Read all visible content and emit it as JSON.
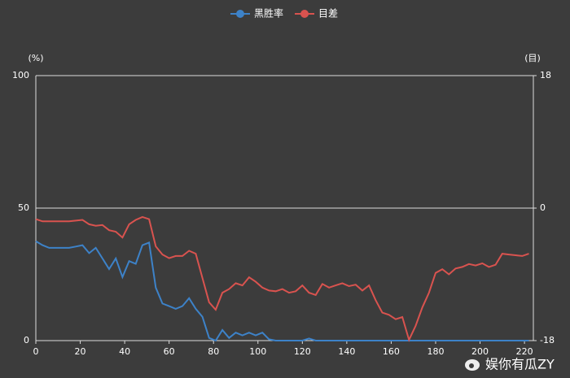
{
  "chart_data": {
    "type": "line",
    "x": [
      0,
      3,
      6,
      9,
      12,
      15,
      18,
      21,
      24,
      27,
      30,
      33,
      36,
      39,
      42,
      45,
      48,
      51,
      54,
      57,
      60,
      63,
      66,
      69,
      72,
      75,
      78,
      81,
      84,
      87,
      90,
      93,
      96,
      99,
      102,
      105,
      108,
      111,
      114,
      117,
      120,
      123,
      126,
      129,
      132,
      135,
      138,
      141,
      144,
      147,
      150,
      153,
      156,
      159,
      162,
      165,
      168,
      171,
      174,
      177,
      180,
      183,
      186,
      189,
      192,
      195,
      198,
      201,
      204,
      207,
      210,
      213,
      216,
      219,
      222
    ],
    "series": [
      {
        "name": "黑胜率",
        "color": "#3d82c8",
        "axis": "y",
        "values": [
          37.5,
          36,
          35,
          35,
          35,
          35,
          35.5,
          36,
          33,
          35,
          31,
          27,
          31,
          24,
          30,
          29,
          36,
          37,
          20,
          14,
          13,
          12,
          13,
          16,
          12,
          9,
          1,
          0,
          4,
          1,
          3,
          2,
          3,
          2,
          3,
          0.5,
          0,
          0,
          0,
          0,
          0,
          0.8,
          0,
          0,
          0,
          0,
          0,
          0,
          0,
          0,
          0,
          0,
          0,
          0,
          0,
          0,
          0,
          0,
          0,
          0,
          0,
          0,
          0,
          0,
          0,
          0,
          0,
          0,
          0,
          0,
          0,
          0,
          0,
          0,
          0
        ]
      },
      {
        "name": "目差",
        "color": "#d9534f",
        "axis": "y2",
        "values": [
          -1.5,
          -1.8,
          -1.8,
          -1.8,
          -1.8,
          -1.8,
          -1.7,
          -1.6,
          -2.2,
          -2.4,
          -2.3,
          -3,
          -3.2,
          -4,
          -2.2,
          -1.6,
          -1.2,
          -1.5,
          -5.2,
          -6.3,
          -6.8,
          -6.5,
          -6.5,
          -5.8,
          -6.2,
          -9.5,
          -12.8,
          -13.8,
          -11.5,
          -11,
          -10.2,
          -10.5,
          -9.4,
          -10,
          -10.8,
          -11.2,
          -11.3,
          -11,
          -11.5,
          -11.3,
          -10.5,
          -11.5,
          -11.8,
          -10.3,
          -10.8,
          -10.5,
          -10.2,
          -10.6,
          -10.4,
          -11.2,
          -10.5,
          -12.5,
          -14.2,
          -14.5,
          -15.1,
          -14.8,
          -17.9,
          -16,
          -13.5,
          -11.5,
          -8.8,
          -8.3,
          -9,
          -8.2,
          -8,
          -7.6,
          -7.8,
          -7.5,
          -8,
          -7.7,
          -6.2,
          -6.3,
          -6.4,
          -6.5,
          -6.2
        ]
      }
    ],
    "xlim": [
      0,
      224
    ],
    "xticks": [
      0,
      20,
      40,
      60,
      80,
      100,
      120,
      140,
      160,
      180,
      200,
      220
    ],
    "ylim": [
      0,
      100
    ],
    "yticks": [
      0,
      50,
      100
    ],
    "y_label": "(%)",
    "y2lim": [
      -18,
      18
    ],
    "y2ticks": [
      -18,
      0,
      18
    ],
    "y2_label": "(目)",
    "grid": true,
    "legend": "top",
    "watermark": "娱你有瓜ZY"
  }
}
